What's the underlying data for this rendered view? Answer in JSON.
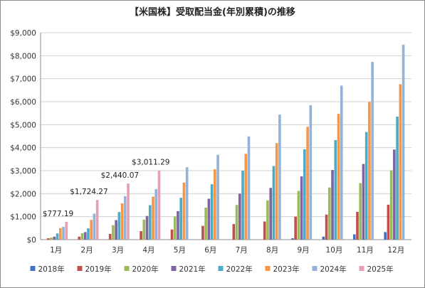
{
  "chart_data": {
    "type": "bar",
    "title": "【米国株】受取配当金(年別累積)の推移",
    "xlabel": "",
    "ylabel": "",
    "ylim": [
      0,
      9000
    ],
    "yticks": [
      "$0",
      "$1,000",
      "$2,000",
      "$3,000",
      "$4,000",
      "$5,000",
      "$6,000",
      "$7,000",
      "$8,000",
      "$9,000"
    ],
    "categories": [
      "1月",
      "2月",
      "3月",
      "4月",
      "5月",
      "6月",
      "7月",
      "8月",
      "9月",
      "10月",
      "11月",
      "12月"
    ],
    "grid": true,
    "legend_position": "bottom",
    "series": [
      {
        "name": "2018年",
        "color": "#4472c4",
        "values": [
          0,
          0,
          0,
          0,
          0,
          0,
          0,
          0,
          60,
          130,
          230,
          330
        ]
      },
      {
        "name": "2019年",
        "color": "#c0504d",
        "values": [
          60,
          130,
          250,
          370,
          440,
          600,
          680,
          790,
          1000,
          1090,
          1210,
          1520
        ]
      },
      {
        "name": "2020年",
        "color": "#9bbb59",
        "values": [
          90,
          280,
          630,
          870,
          1010,
          1390,
          1510,
          1710,
          2120,
          2270,
          2460,
          3020
        ]
      },
      {
        "name": "2021年",
        "color": "#8064a2",
        "values": [
          130,
          330,
          850,
          1030,
          1240,
          1780,
          2000,
          2250,
          2750,
          3030,
          3290,
          3920
        ]
      },
      {
        "name": "2022年",
        "color": "#4bacc6",
        "values": [
          270,
          490,
          1200,
          1500,
          1820,
          2410,
          3000,
          3200,
          3930,
          4330,
          4680,
          5350
        ]
      },
      {
        "name": "2023年",
        "color": "#f79646",
        "values": [
          500,
          860,
          1580,
          1870,
          2480,
          3060,
          3730,
          4200,
          4910,
          5470,
          5990,
          6760
        ]
      },
      {
        "name": "2024年",
        "color": "#95b3d7",
        "values": [
          560,
          1130,
          1890,
          2200,
          3150,
          3690,
          4490,
          5440,
          5850,
          6700,
          7730,
          8480
        ]
      },
      {
        "name": "2025年",
        "color": "#e6a0b0",
        "values": [
          777.19,
          1724.27,
          2440.07,
          3011.29,
          null,
          null,
          null,
          null,
          null,
          null,
          null,
          null
        ]
      }
    ],
    "data_labels": [
      "$777.19",
      "$1,724.27",
      "$2,440.07",
      "$3,011.29"
    ]
  }
}
